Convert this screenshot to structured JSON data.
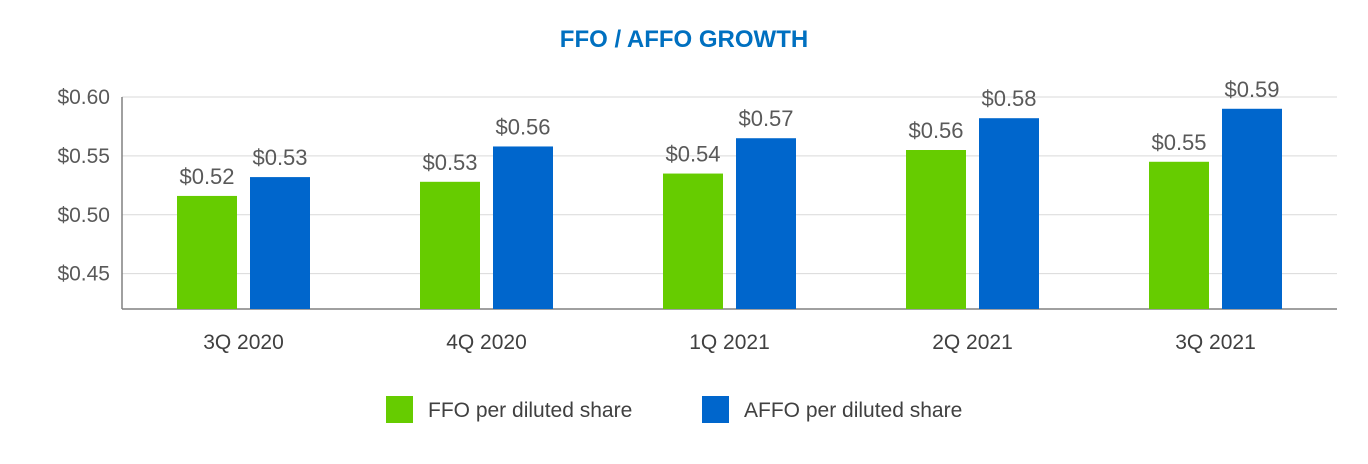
{
  "colors": {
    "title": "#0070C0",
    "ffo": "#66CC00",
    "affo": "#0066CC",
    "grid": "#D9D9D9",
    "axis": "#808080"
  },
  "chart_data": {
    "type": "bar",
    "title": "FFO / AFFO GROWTH",
    "xlabel": "",
    "ylabel": "",
    "categories": [
      "3Q 2020",
      "4Q 2020",
      "1Q 2021",
      "2Q 2021",
      "3Q 2021"
    ],
    "series": [
      {
        "name": "FFO per diluted share",
        "color": "#66CC00",
        "values": [
          0.516,
          0.528,
          0.535,
          0.555,
          0.545
        ],
        "labels": [
          "$0.52",
          "$0.53",
          "$0.54",
          "$0.56",
          "$0.55"
        ]
      },
      {
        "name": "AFFO per diluted share",
        "color": "#0066CC",
        "values": [
          0.532,
          0.558,
          0.565,
          0.582,
          0.59
        ],
        "labels": [
          "$0.53",
          "$0.56",
          "$0.57",
          "$0.58",
          "$0.59"
        ]
      }
    ],
    "ylim": [
      0.42,
      0.6
    ],
    "yticks": [
      0.45,
      0.5,
      0.55,
      0.6
    ],
    "ytick_labels": [
      "$0.45",
      "$0.50",
      "$0.55",
      "$0.60"
    ],
    "grid": true,
    "legend_position": "bottom"
  }
}
